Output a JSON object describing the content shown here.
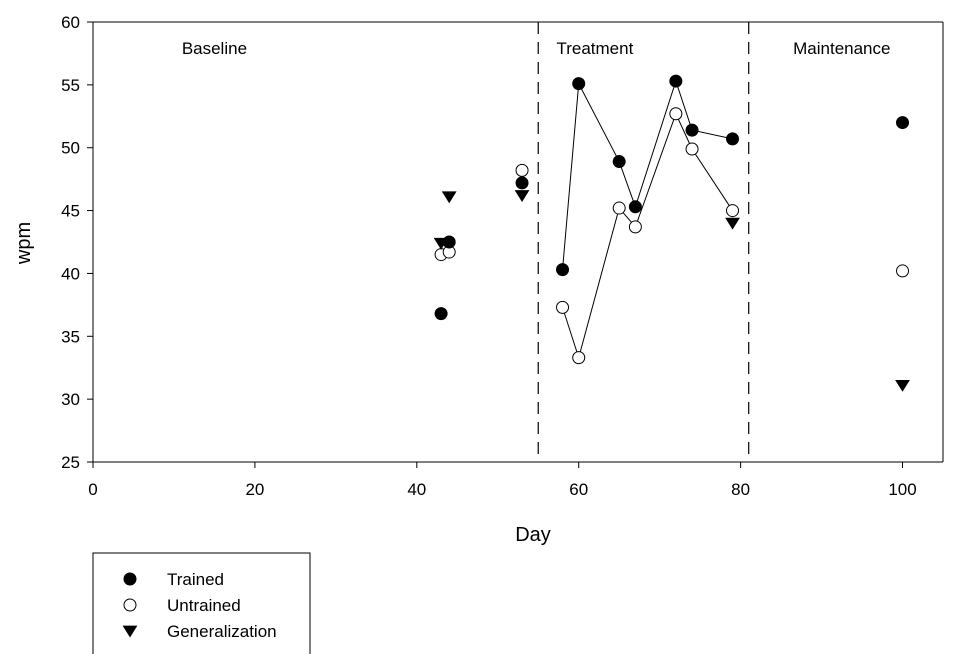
{
  "chart_data": {
    "type": "scatter",
    "title": "",
    "xlabel": "Day",
    "ylabel": "wpm",
    "xlim": [
      0,
      105
    ],
    "ylim": [
      25,
      60
    ],
    "xticks": [
      0,
      20,
      40,
      60,
      80,
      100
    ],
    "yticks": [
      25,
      30,
      35,
      40,
      45,
      50,
      55,
      60
    ],
    "grid": false,
    "legend_position": "bottom-left (below plot)",
    "phase_lines": [
      55,
      81
    ],
    "phases": [
      {
        "label": "Baseline",
        "x": 15
      },
      {
        "label": "Treatment",
        "x": 62
      },
      {
        "label": "Maintenance",
        "x": 92.5
      }
    ],
    "series": [
      {
        "name": "Trained",
        "marker": "filled-circle",
        "baseline": [
          [
            43,
            36.8
          ],
          [
            44,
            42.5
          ],
          [
            53,
            47.2
          ]
        ],
        "treatment": [
          [
            58,
            40.3
          ],
          [
            60,
            55.1
          ],
          [
            65,
            48.9
          ],
          [
            67,
            45.3
          ],
          [
            72,
            55.3
          ],
          [
            74,
            51.4
          ],
          [
            79,
            50.7
          ]
        ],
        "maintenance": [
          [
            100,
            52.0
          ]
        ]
      },
      {
        "name": "Untrained",
        "marker": "open-circle",
        "baseline": [
          [
            43,
            41.5
          ],
          [
            44,
            41.7
          ],
          [
            53,
            48.2
          ]
        ],
        "treatment": [
          [
            58,
            37.3
          ],
          [
            60,
            33.3
          ],
          [
            65,
            45.2
          ],
          [
            67,
            43.7
          ],
          [
            72,
            52.7
          ],
          [
            74,
            49.9
          ],
          [
            79,
            45.0
          ]
        ],
        "maintenance": [
          [
            100,
            40.2
          ]
        ]
      },
      {
        "name": "Generalization",
        "marker": "filled-triangle-down",
        "baseline": [
          [
            43,
            42.4
          ],
          [
            44,
            46.1
          ],
          [
            53,
            46.2
          ]
        ],
        "treatment": [
          [
            79,
            44.0
          ]
        ],
        "maintenance": [
          [
            100,
            31.1
          ]
        ]
      }
    ]
  }
}
